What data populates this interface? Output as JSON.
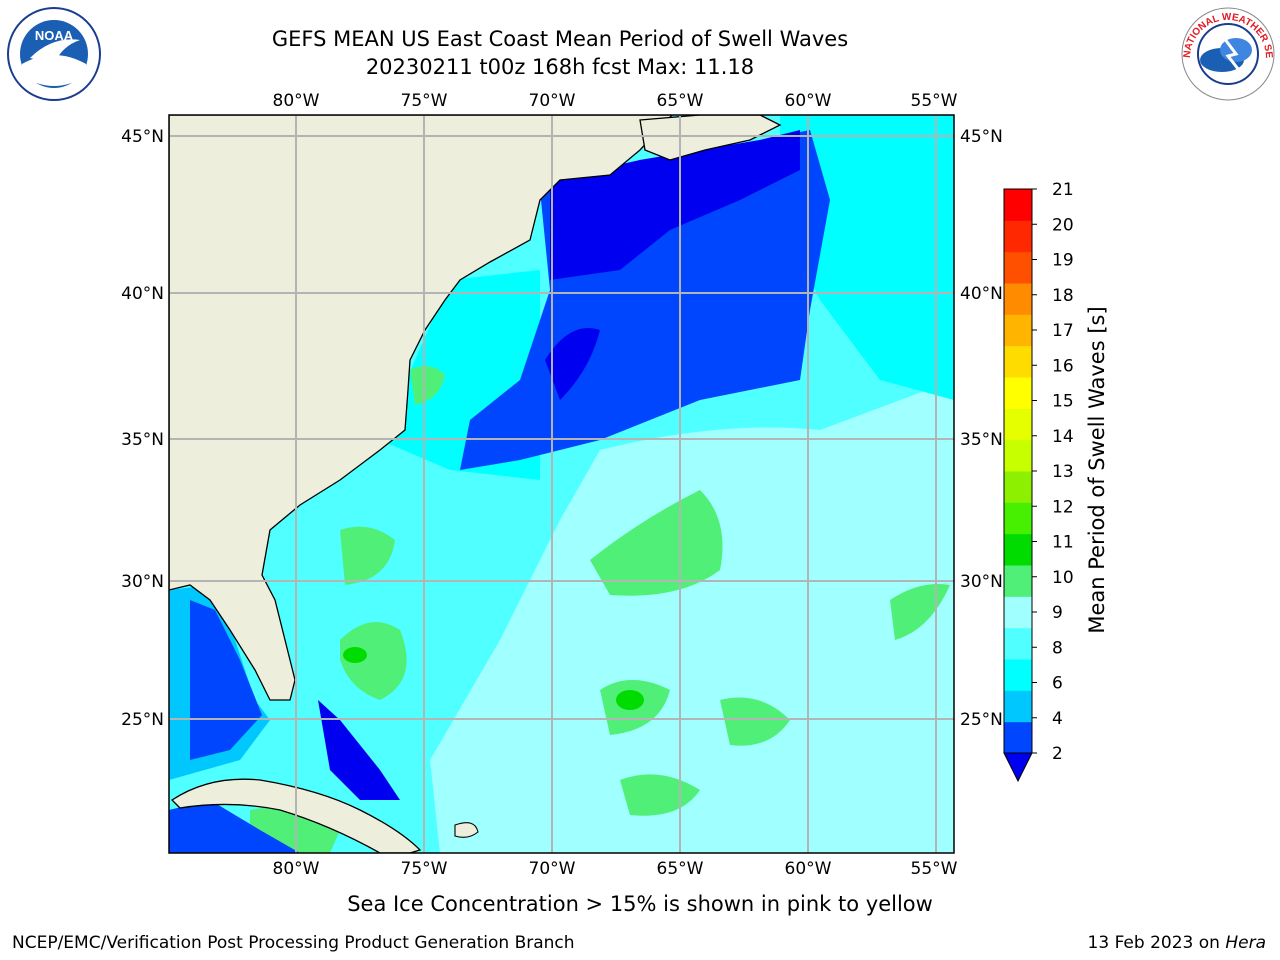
{
  "title": {
    "line1": "GEFS MEAN US East Coast Mean Period of Swell Waves",
    "line2": "20230211 t00z 168h fcst   Max: 11.18"
  },
  "logos": {
    "left": {
      "name": "noaa-logo",
      "text": "NOAA"
    },
    "right": {
      "name": "nws-logo",
      "text": "NATIONAL WEATHER SERVICE"
    }
  },
  "map": {
    "lon_labels": [
      "80°W",
      "75°W",
      "70°W",
      "65°W",
      "60°W",
      "55°W"
    ],
    "lat_labels": [
      "45°N",
      "40°N",
      "35°N",
      "30°N",
      "25°N"
    ],
    "lon_range": [
      -85,
      -54
    ],
    "lat_range": [
      20.5,
      46
    ]
  },
  "colorbar": {
    "label": "Mean Period of Swell Waves [s]",
    "levels": [
      "2",
      "4",
      "6",
      "8",
      "9",
      "10",
      "11",
      "12",
      "13",
      "14",
      "15",
      "16",
      "17",
      "18",
      "19",
      "20",
      "21"
    ],
    "colors": [
      "#0046ff",
      "#00c8ff",
      "#00ffff",
      "#50ffff",
      "#a0ffff",
      "#50f078",
      "#00dc00",
      "#46f000",
      "#8cf000",
      "#c8ff00",
      "#e6ff00",
      "#ffff00",
      "#ffdc00",
      "#ffb400",
      "#ff8c00",
      "#ff5000",
      "#ff2800",
      "#ff0000"
    ],
    "under_color": "#0000f0",
    "land_color": "#eeeedc",
    "grid_color": "#b4b4b4"
  },
  "footer": {
    "note": "Sea Ice Concentration > 15% is shown in pink to yellow",
    "credit": "NCEP/EMC/Verification Post Processing Product Generation Branch",
    "date_prefix": "13 Feb 2023 on ",
    "date_host": "Hera"
  }
}
